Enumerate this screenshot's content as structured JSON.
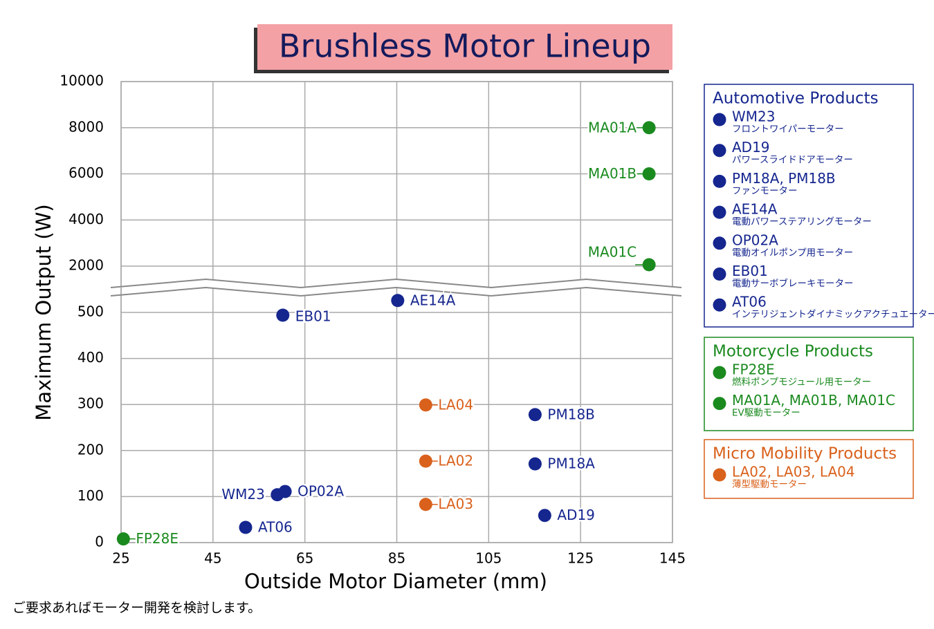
{
  "chart_data": {
    "type": "scatter",
    "title": "Brushless Motor Lineup",
    "x_label": "Outside Motor Diameter (mm)",
    "y_label": "Maximum Output (W)",
    "xlim": [
      25,
      145
    ],
    "xticks": [
      25,
      45,
      65,
      85,
      105,
      125,
      145
    ],
    "ylim": [
      0,
      10000
    ],
    "y_break": [
      500,
      2000
    ],
    "yticks": [
      0,
      100,
      200,
      300,
      400,
      500,
      2000,
      4000,
      6000,
      8000,
      10000
    ],
    "grid": true,
    "series": [
      {
        "name": "Automotive Products",
        "color": "#15268f",
        "x": [
          59,
          60.7,
          60.2,
          85.2,
          115.1,
          115.1,
          117.2,
          52.1
        ],
        "values": [
          104,
          111,
          494,
          509,
          278,
          171,
          59,
          33
        ],
        "point_labels": [
          "WM23",
          "OP02A",
          "EB01",
          "AE14A",
          "PM18B",
          "PM18A",
          "AD19",
          "AT06"
        ],
        "legend_items": [
          {
            "label": "WM23",
            "note": "フロントワイパーモーター"
          },
          {
            "label": "AD19",
            "note": "パワースライドドアモーター"
          },
          {
            "label": "PM18A, PM18B",
            "note": "ファンモーター"
          },
          {
            "label": "AE14A",
            "note": "電動パワーステアリングモーター"
          },
          {
            "label": "OP02A",
            "note": "電動オイルポンプ用モーター"
          },
          {
            "label": "EB01",
            "note": "電動サーボブレーキモーター"
          },
          {
            "label": "AT06",
            "note": "インテリジェントダイナミックアクチュエーター"
          }
        ]
      },
      {
        "name": "Motorcycle Products",
        "color": "#1a8a1f",
        "x": [
          25.5,
          139.9,
          139.9,
          139.9
        ],
        "values": [
          8,
          8000,
          6000,
          2060
        ],
        "point_labels": [
          "FP28E",
          "MA01A",
          "MA01B",
          "MA01C"
        ],
        "legend_items": [
          {
            "label": "FP28E",
            "note": "燃料ポンプモジュール用モーター"
          },
          {
            "label": "MA01A, MA01B, MA01C",
            "note": "EV駆動モーター"
          }
        ]
      },
      {
        "name": "Micro Mobility Products",
        "color": "#d9611c",
        "x": [
          91.3,
          91.3,
          91.3
        ],
        "values": [
          299,
          177,
          83
        ],
        "point_labels": [
          "LA04",
          "LA02",
          "LA03"
        ],
        "legend_items": [
          {
            "label": "LA02, LA03, LA04",
            "note": "薄型駆動モーター"
          }
        ]
      }
    ],
    "footnote": "ご要求あればモーター開発を検討します。"
  }
}
